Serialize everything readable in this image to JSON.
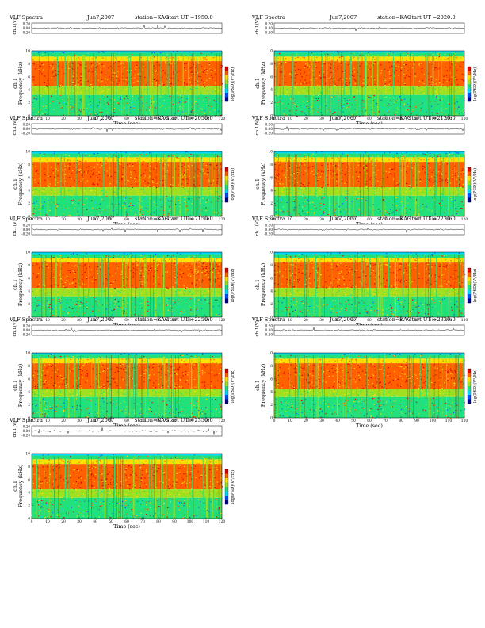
{
  "header": {
    "title": "VLF Spectra",
    "date": "Jun7,2007",
    "station": "station=KAG",
    "start_prefix": "start UT ="
  },
  "labels": {
    "waveform_ylabel": "ch.1(V)",
    "spec_ylabel_line1": "ch.1",
    "spec_ylabel_line2": "Frequency (kHz)",
    "xlabel": "Time (sec)",
    "colorbar_label": "log(PSD)(V²/Hz)"
  },
  "chart_data": [
    {
      "type": "heatmap",
      "start_ut": "1950:0",
      "x_ticks": [
        0,
        10,
        20,
        30,
        40,
        50,
        60,
        70,
        80,
        90,
        100,
        110,
        120
      ],
      "y_ticks": [
        0,
        2,
        4,
        6,
        8,
        10
      ],
      "wave_ticks": [
        "0.20",
        "0.00",
        "-0.20"
      ],
      "xlim": [
        0,
        120
      ],
      "ylim": [
        0,
        10
      ]
    },
    {
      "type": "heatmap",
      "start_ut": "2020:0",
      "x_ticks": [
        0,
        10,
        20,
        30,
        40,
        50,
        60,
        70,
        80,
        90,
        100,
        110,
        120
      ],
      "y_ticks": [
        0,
        2,
        4,
        6,
        8,
        10
      ],
      "wave_ticks": [
        "0.20",
        "0.00",
        "-0.20"
      ],
      "xlim": [
        0,
        120
      ],
      "ylim": [
        0,
        10
      ]
    },
    {
      "type": "heatmap",
      "start_ut": "2050:0",
      "x_ticks": [
        0,
        10,
        20,
        30,
        40,
        50,
        60,
        70,
        80,
        90,
        100,
        110,
        120
      ],
      "y_ticks": [
        0,
        2,
        4,
        6,
        8,
        10
      ],
      "wave_ticks": [
        "0.20",
        "0.00",
        "-0.20"
      ],
      "xlim": [
        0,
        120
      ],
      "ylim": [
        0,
        10
      ]
    },
    {
      "type": "heatmap",
      "start_ut": "2120:0",
      "x_ticks": [
        0,
        10,
        20,
        30,
        40,
        50,
        60,
        70,
        80,
        90,
        100,
        110,
        120
      ],
      "y_ticks": [
        0,
        2,
        4,
        6,
        8,
        10
      ],
      "wave_ticks": [
        "0.20",
        "0.00",
        "-0.20"
      ],
      "xlim": [
        0,
        120
      ],
      "ylim": [
        0,
        10
      ]
    },
    {
      "type": "heatmap",
      "start_ut": "2150:0",
      "x_ticks": [
        0,
        10,
        20,
        30,
        40,
        50,
        60,
        70,
        80,
        90,
        100,
        110,
        120
      ],
      "y_ticks": [
        0,
        2,
        4,
        6,
        8,
        10
      ],
      "wave_ticks": [
        "0.20",
        "0.00",
        "-0.20"
      ],
      "xlim": [
        0,
        120
      ],
      "ylim": [
        0,
        10
      ]
    },
    {
      "type": "heatmap",
      "start_ut": "2220:0",
      "x_ticks": [
        0,
        10,
        20,
        30,
        40,
        50,
        60,
        70,
        80,
        90,
        100,
        110,
        120
      ],
      "y_ticks": [
        0,
        2,
        4,
        6,
        8,
        10
      ],
      "wave_ticks": [
        "0.20",
        "0.00",
        "-0.20"
      ],
      "xlim": [
        0,
        120
      ],
      "ylim": [
        0,
        10
      ]
    },
    {
      "type": "heatmap",
      "start_ut": "2250:0",
      "x_ticks": [
        0,
        10,
        20,
        30,
        40,
        50,
        60,
        70,
        80,
        90,
        100,
        110,
        120
      ],
      "y_ticks": [
        0,
        2,
        4,
        6,
        8,
        10
      ],
      "wave_ticks": [
        "0.20",
        "0.00",
        "-0.20"
      ],
      "xlim": [
        0,
        120
      ],
      "ylim": [
        0,
        10
      ]
    },
    {
      "type": "heatmap",
      "start_ut": "2320:0",
      "x_ticks": [
        0,
        10,
        20,
        30,
        40,
        50,
        60,
        70,
        80,
        90,
        100,
        110,
        120
      ],
      "y_ticks": [
        0,
        2,
        4,
        6,
        8,
        10
      ],
      "wave_ticks": [
        "0.20",
        "0.00",
        "-0.20"
      ],
      "xlim": [
        0,
        120
      ],
      "ylim": [
        0,
        10
      ]
    },
    {
      "type": "heatmap",
      "start_ut": "2350:0",
      "x_ticks": [
        0,
        10,
        20,
        30,
        40,
        50,
        60,
        70,
        80,
        90,
        100,
        110,
        120
      ],
      "y_ticks": [
        0,
        2,
        4,
        6,
        8,
        10
      ],
      "wave_ticks": [
        "0.20",
        "0.00",
        "-0.20"
      ],
      "xlim": [
        0,
        120
      ],
      "ylim": [
        0,
        10
      ]
    }
  ],
  "colors": {
    "colormap": [
      "#00008f",
      "#0050ff",
      "#00d8ff",
      "#22e07a",
      "#a0e020",
      "#ffe000",
      "#ff6000",
      "#e00000"
    ],
    "background_band": "#2fdc6a"
  }
}
